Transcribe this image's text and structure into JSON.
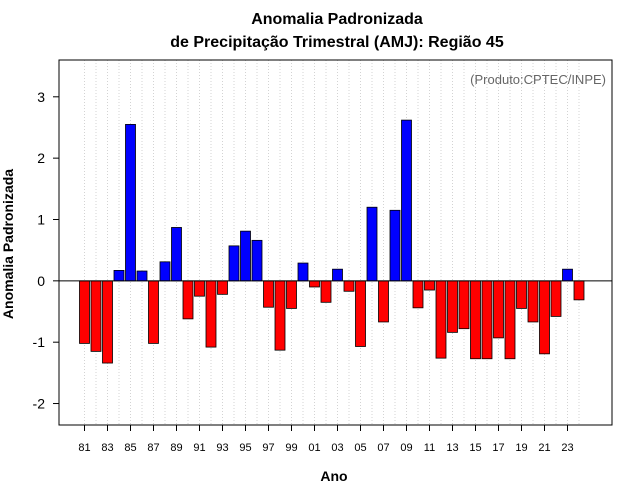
{
  "chart_data": {
    "type": "bar",
    "title_line1": "Anomalia Padronizada",
    "title_line2": "de Precipitação Trimestral (AMJ): Região 45",
    "xlabel": "Ano",
    "ylabel": "Anomalia Padronizada",
    "credit": "(Produto:CPTEC/INPE)",
    "ylim": [
      -2.35,
      3.6
    ],
    "yticks": [
      -2,
      -1,
      0,
      1,
      2,
      3
    ],
    "grid": "vertical dotted",
    "positive_color": "#0000ff",
    "negative_color": "#ff0000",
    "categories": [
      "81",
      "82",
      "83",
      "84",
      "85",
      "86",
      "87",
      "88",
      "89",
      "90",
      "91",
      "92",
      "93",
      "94",
      "95",
      "96",
      "97",
      "98",
      "99",
      "00",
      "01",
      "02",
      "03",
      "04",
      "05",
      "06",
      "07",
      "08",
      "09",
      "10",
      "11",
      "12",
      "13",
      "14",
      "15",
      "16",
      "17",
      "18",
      "19",
      "20",
      "21",
      "22",
      "23",
      "24"
    ],
    "x_tick_labels": [
      "81",
      "83",
      "85",
      "87",
      "89",
      "91",
      "93",
      "95",
      "97",
      "99",
      "01",
      "03",
      "05",
      "07",
      "09",
      "11",
      "13",
      "15",
      "17",
      "19",
      "21",
      "23"
    ],
    "values": [
      -1.02,
      -1.15,
      -1.34,
      0.17,
      2.55,
      0.16,
      -1.02,
      0.31,
      0.87,
      -0.62,
      -0.25,
      -1.08,
      -0.22,
      0.57,
      0.81,
      0.66,
      -0.43,
      -1.13,
      -0.45,
      0.29,
      -0.1,
      -0.35,
      0.19,
      -0.17,
      -1.07,
      1.2,
      -0.67,
      1.15,
      2.62,
      -0.44,
      -0.15,
      -1.26,
      -0.84,
      -0.78,
      -1.27,
      -1.27,
      -0.93,
      -1.27,
      -0.45,
      -0.67,
      -1.19,
      -0.58,
      0.19,
      -0.31
    ]
  }
}
